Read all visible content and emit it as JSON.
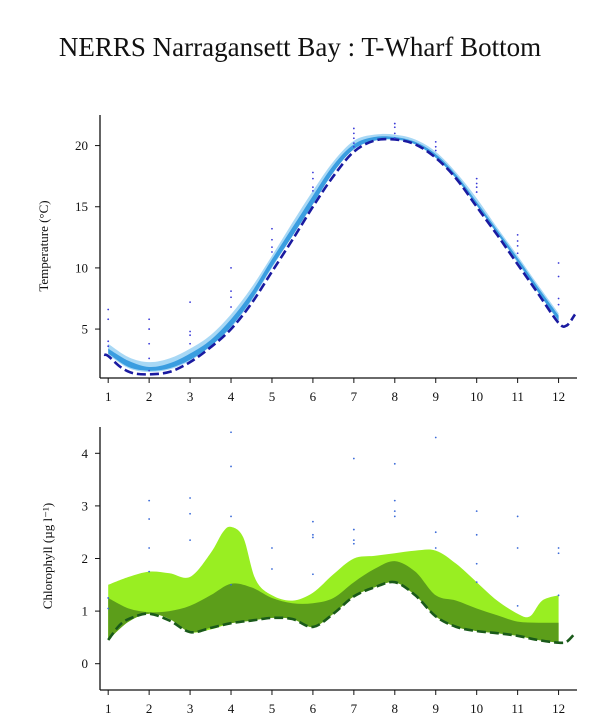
{
  "title": "NERRS Narragansett Bay : T-Wharf Bottom",
  "colors": {
    "temp_band_outer": "#a8d8f5",
    "temp_band_inner": "#3a9de0",
    "temp_line": "#1a1aa0",
    "temp_points": "#3a3ad8",
    "chl_band_outer": "#99ee22",
    "chl_band_inner": "#5c9e1a",
    "chl_line": "#1a5a1a",
    "chl_points": "#3a6ad8"
  },
  "chart_data": [
    {
      "type": "area",
      "ylabel": "Temperature (°C)",
      "xlabel": "",
      "x_ticks": [
        1,
        2,
        3,
        4,
        5,
        6,
        7,
        8,
        9,
        10,
        11,
        12
      ],
      "y_ticks": [
        5,
        10,
        15,
        20
      ],
      "xlim": [
        0.8,
        12.45
      ],
      "ylim": [
        1.0,
        22.5
      ],
      "grid": false,
      "series": [
        {
          "role": "band-outer",
          "x": [
            1,
            1.5,
            2,
            2.5,
            3,
            3.5,
            4,
            4.5,
            5,
            5.5,
            6,
            6.5,
            7,
            7.5,
            8,
            8.5,
            9,
            9.5,
            10,
            10.5,
            11,
            11.5,
            12
          ],
          "low": [
            2.9,
            1.8,
            1.5,
            1.7,
            2.4,
            3.6,
            5.1,
            7.3,
            10.0,
            12.6,
            15.3,
            17.9,
            19.8,
            20.6,
            20.6,
            20.1,
            19.0,
            17.3,
            15.1,
            12.8,
            10.4,
            8.0,
            5.6
          ],
          "high": [
            3.8,
            2.7,
            2.3,
            2.6,
            3.4,
            4.5,
            6.2,
            8.4,
            11.0,
            13.7,
            16.3,
            18.7,
            20.4,
            20.9,
            20.9,
            20.5,
            19.5,
            17.8,
            15.7,
            13.3,
            11.0,
            8.6,
            6.3
          ]
        },
        {
          "role": "band-inner",
          "x": [
            1,
            1.5,
            2,
            2.5,
            3,
            3.5,
            4,
            4.5,
            5,
            5.5,
            6,
            6.5,
            7,
            7.5,
            8,
            8.5,
            9,
            9.5,
            10,
            10.5,
            11,
            11.5,
            12
          ],
          "low": [
            3.0,
            1.9,
            1.6,
            1.8,
            2.5,
            3.6,
            5.2,
            7.4,
            10.1,
            12.6,
            15.2,
            17.8,
            19.7,
            20.4,
            20.5,
            20.1,
            19.0,
            17.3,
            15.1,
            12.8,
            10.5,
            8.0,
            5.7
          ],
          "high": [
            3.4,
            2.4,
            1.9,
            2.2,
            3.0,
            4.1,
            5.8,
            8.0,
            10.7,
            13.3,
            15.9,
            18.4,
            20.1,
            20.7,
            20.7,
            20.3,
            19.3,
            17.6,
            15.4,
            13.1,
            10.8,
            8.4,
            6.1
          ]
        },
        {
          "role": "median-line",
          "x": [
            0.9,
            1,
            1.3,
            1.6,
            2,
            2.5,
            3,
            3.5,
            4,
            4.5,
            5,
            5.5,
            6,
            6.5,
            7,
            7.5,
            8,
            8.5,
            9,
            9.5,
            10,
            10.5,
            11,
            11.5,
            12,
            12.2,
            12.4
          ],
          "y": [
            2.9,
            2.8,
            1.9,
            1.4,
            1.3,
            1.5,
            2.3,
            3.5,
            5.0,
            7.1,
            9.7,
            12.3,
            15.0,
            17.5,
            19.5,
            20.4,
            20.5,
            20.1,
            19.0,
            17.3,
            15.0,
            12.7,
            10.3,
            7.9,
            5.5,
            5.3,
            6.2
          ]
        },
        {
          "role": "points",
          "x": [
            1,
            1,
            1,
            1,
            2,
            2,
            2,
            2,
            2,
            3,
            3,
            3,
            3,
            4,
            4,
            4,
            4,
            5,
            5,
            5,
            5,
            6,
            6,
            6,
            6,
            7,
            7,
            7,
            7,
            7,
            8,
            8,
            8,
            8,
            9,
            9,
            9,
            10,
            10,
            10,
            10,
            11,
            11,
            11,
            11,
            12,
            12,
            12,
            12
          ],
          "y": [
            6.6,
            5.8,
            4.0,
            3.6,
            5.8,
            5.0,
            3.8,
            2.6,
            1.6,
            7.2,
            4.8,
            4.5,
            3.8,
            10.0,
            8.1,
            7.6,
            6.8,
            13.2,
            12.3,
            11.7,
            11.3,
            17.8,
            17.3,
            16.6,
            16.3,
            21.4,
            21.0,
            20.6,
            20.2,
            19.9,
            21.8,
            21.5,
            21.0,
            20.6,
            20.3,
            19.9,
            19.6,
            17.3,
            16.9,
            16.6,
            16.2,
            12.7,
            12.2,
            11.8,
            11.2,
            10.4,
            9.3,
            7.5,
            7.0
          ]
        }
      ]
    },
    {
      "type": "area",
      "ylabel": "Chlorophyll (µg l⁻¹)",
      "xlabel": "",
      "x_ticks": [
        1,
        2,
        3,
        4,
        5,
        6,
        7,
        8,
        9,
        10,
        11,
        12
      ],
      "y_ticks": [
        0,
        1,
        2,
        3,
        4
      ],
      "xlim": [
        0.8,
        12.45
      ],
      "ylim": [
        -0.5,
        4.5
      ],
      "grid": false,
      "series": [
        {
          "role": "band-outer",
          "x": [
            1,
            1.5,
            2,
            2.5,
            3,
            3.5,
            3.8,
            4,
            4.3,
            4.6,
            5,
            5.5,
            6,
            6.5,
            7,
            7.5,
            8,
            8.5,
            9,
            9.5,
            10,
            10.5,
            11,
            11.3,
            11.6,
            12
          ],
          "low": [
            0.45,
            0.8,
            0.95,
            0.85,
            0.6,
            0.65,
            0.72,
            0.77,
            0.8,
            0.83,
            0.87,
            0.85,
            0.7,
            0.95,
            1.28,
            1.45,
            1.55,
            1.3,
            0.9,
            0.7,
            0.62,
            0.58,
            0.53,
            0.48,
            0.44,
            0.4
          ],
          "high": [
            1.5,
            1.65,
            1.75,
            1.72,
            1.65,
            2.1,
            2.5,
            2.6,
            2.4,
            1.6,
            1.3,
            1.2,
            1.35,
            1.7,
            2.0,
            2.05,
            2.1,
            2.15,
            2.15,
            1.9,
            1.55,
            1.2,
            0.95,
            0.9,
            1.2,
            1.3
          ]
        },
        {
          "role": "band-inner",
          "x": [
            1,
            1.5,
            2,
            2.5,
            3,
            3.5,
            4,
            4.5,
            5,
            5.5,
            6,
            6.5,
            7,
            7.5,
            8,
            8.5,
            9,
            9.5,
            10,
            10.5,
            11,
            11.5,
            12
          ],
          "low": [
            0.45,
            0.8,
            0.95,
            0.85,
            0.6,
            0.68,
            0.77,
            0.82,
            0.87,
            0.85,
            0.7,
            0.95,
            1.28,
            1.45,
            1.55,
            1.3,
            0.9,
            0.7,
            0.62,
            0.58,
            0.53,
            0.45,
            0.4
          ],
          "high": [
            1.25,
            1.05,
            0.98,
            1.0,
            1.1,
            1.3,
            1.52,
            1.45,
            1.25,
            1.15,
            1.15,
            1.25,
            1.55,
            1.8,
            1.95,
            1.75,
            1.3,
            1.2,
            1.05,
            0.92,
            0.8,
            0.78,
            0.78
          ]
        },
        {
          "role": "median-line",
          "x": [
            1,
            1.3,
            1.6,
            2,
            2.5,
            3,
            3.5,
            4,
            4.5,
            5,
            5.5,
            6,
            6.5,
            7,
            7.5,
            8,
            8.5,
            9,
            9.5,
            10,
            10.5,
            11,
            11.5,
            12,
            12.2,
            12.4
          ],
          "y": [
            0.45,
            0.75,
            0.88,
            0.95,
            0.82,
            0.6,
            0.68,
            0.77,
            0.82,
            0.87,
            0.85,
            0.7,
            0.95,
            1.28,
            1.45,
            1.55,
            1.3,
            0.9,
            0.7,
            0.62,
            0.58,
            0.53,
            0.45,
            0.4,
            0.42,
            0.58
          ]
        },
        {
          "role": "points",
          "x": [
            1,
            1,
            2,
            2,
            2,
            2,
            3,
            3,
            3,
            4,
            4,
            4,
            4,
            5,
            5,
            6,
            6,
            6,
            6,
            7,
            7,
            7,
            7,
            8,
            8,
            8,
            8,
            9,
            9,
            9,
            10,
            10,
            10,
            10,
            11,
            11,
            11,
            12,
            12,
            12
          ],
          "y": [
            1.25,
            1.05,
            3.1,
            2.75,
            2.2,
            1.75,
            3.15,
            2.85,
            2.35,
            4.4,
            3.75,
            2.8,
            1.5,
            2.2,
            1.8,
            2.7,
            2.45,
            2.4,
            1.7,
            3.9,
            2.55,
            2.35,
            2.28,
            3.8,
            3.1,
            2.9,
            2.8,
            4.3,
            2.5,
            2.2,
            2.9,
            2.45,
            1.9,
            1.55,
            2.8,
            2.2,
            1.1,
            2.2,
            2.1,
            1.3
          ]
        }
      ]
    }
  ]
}
